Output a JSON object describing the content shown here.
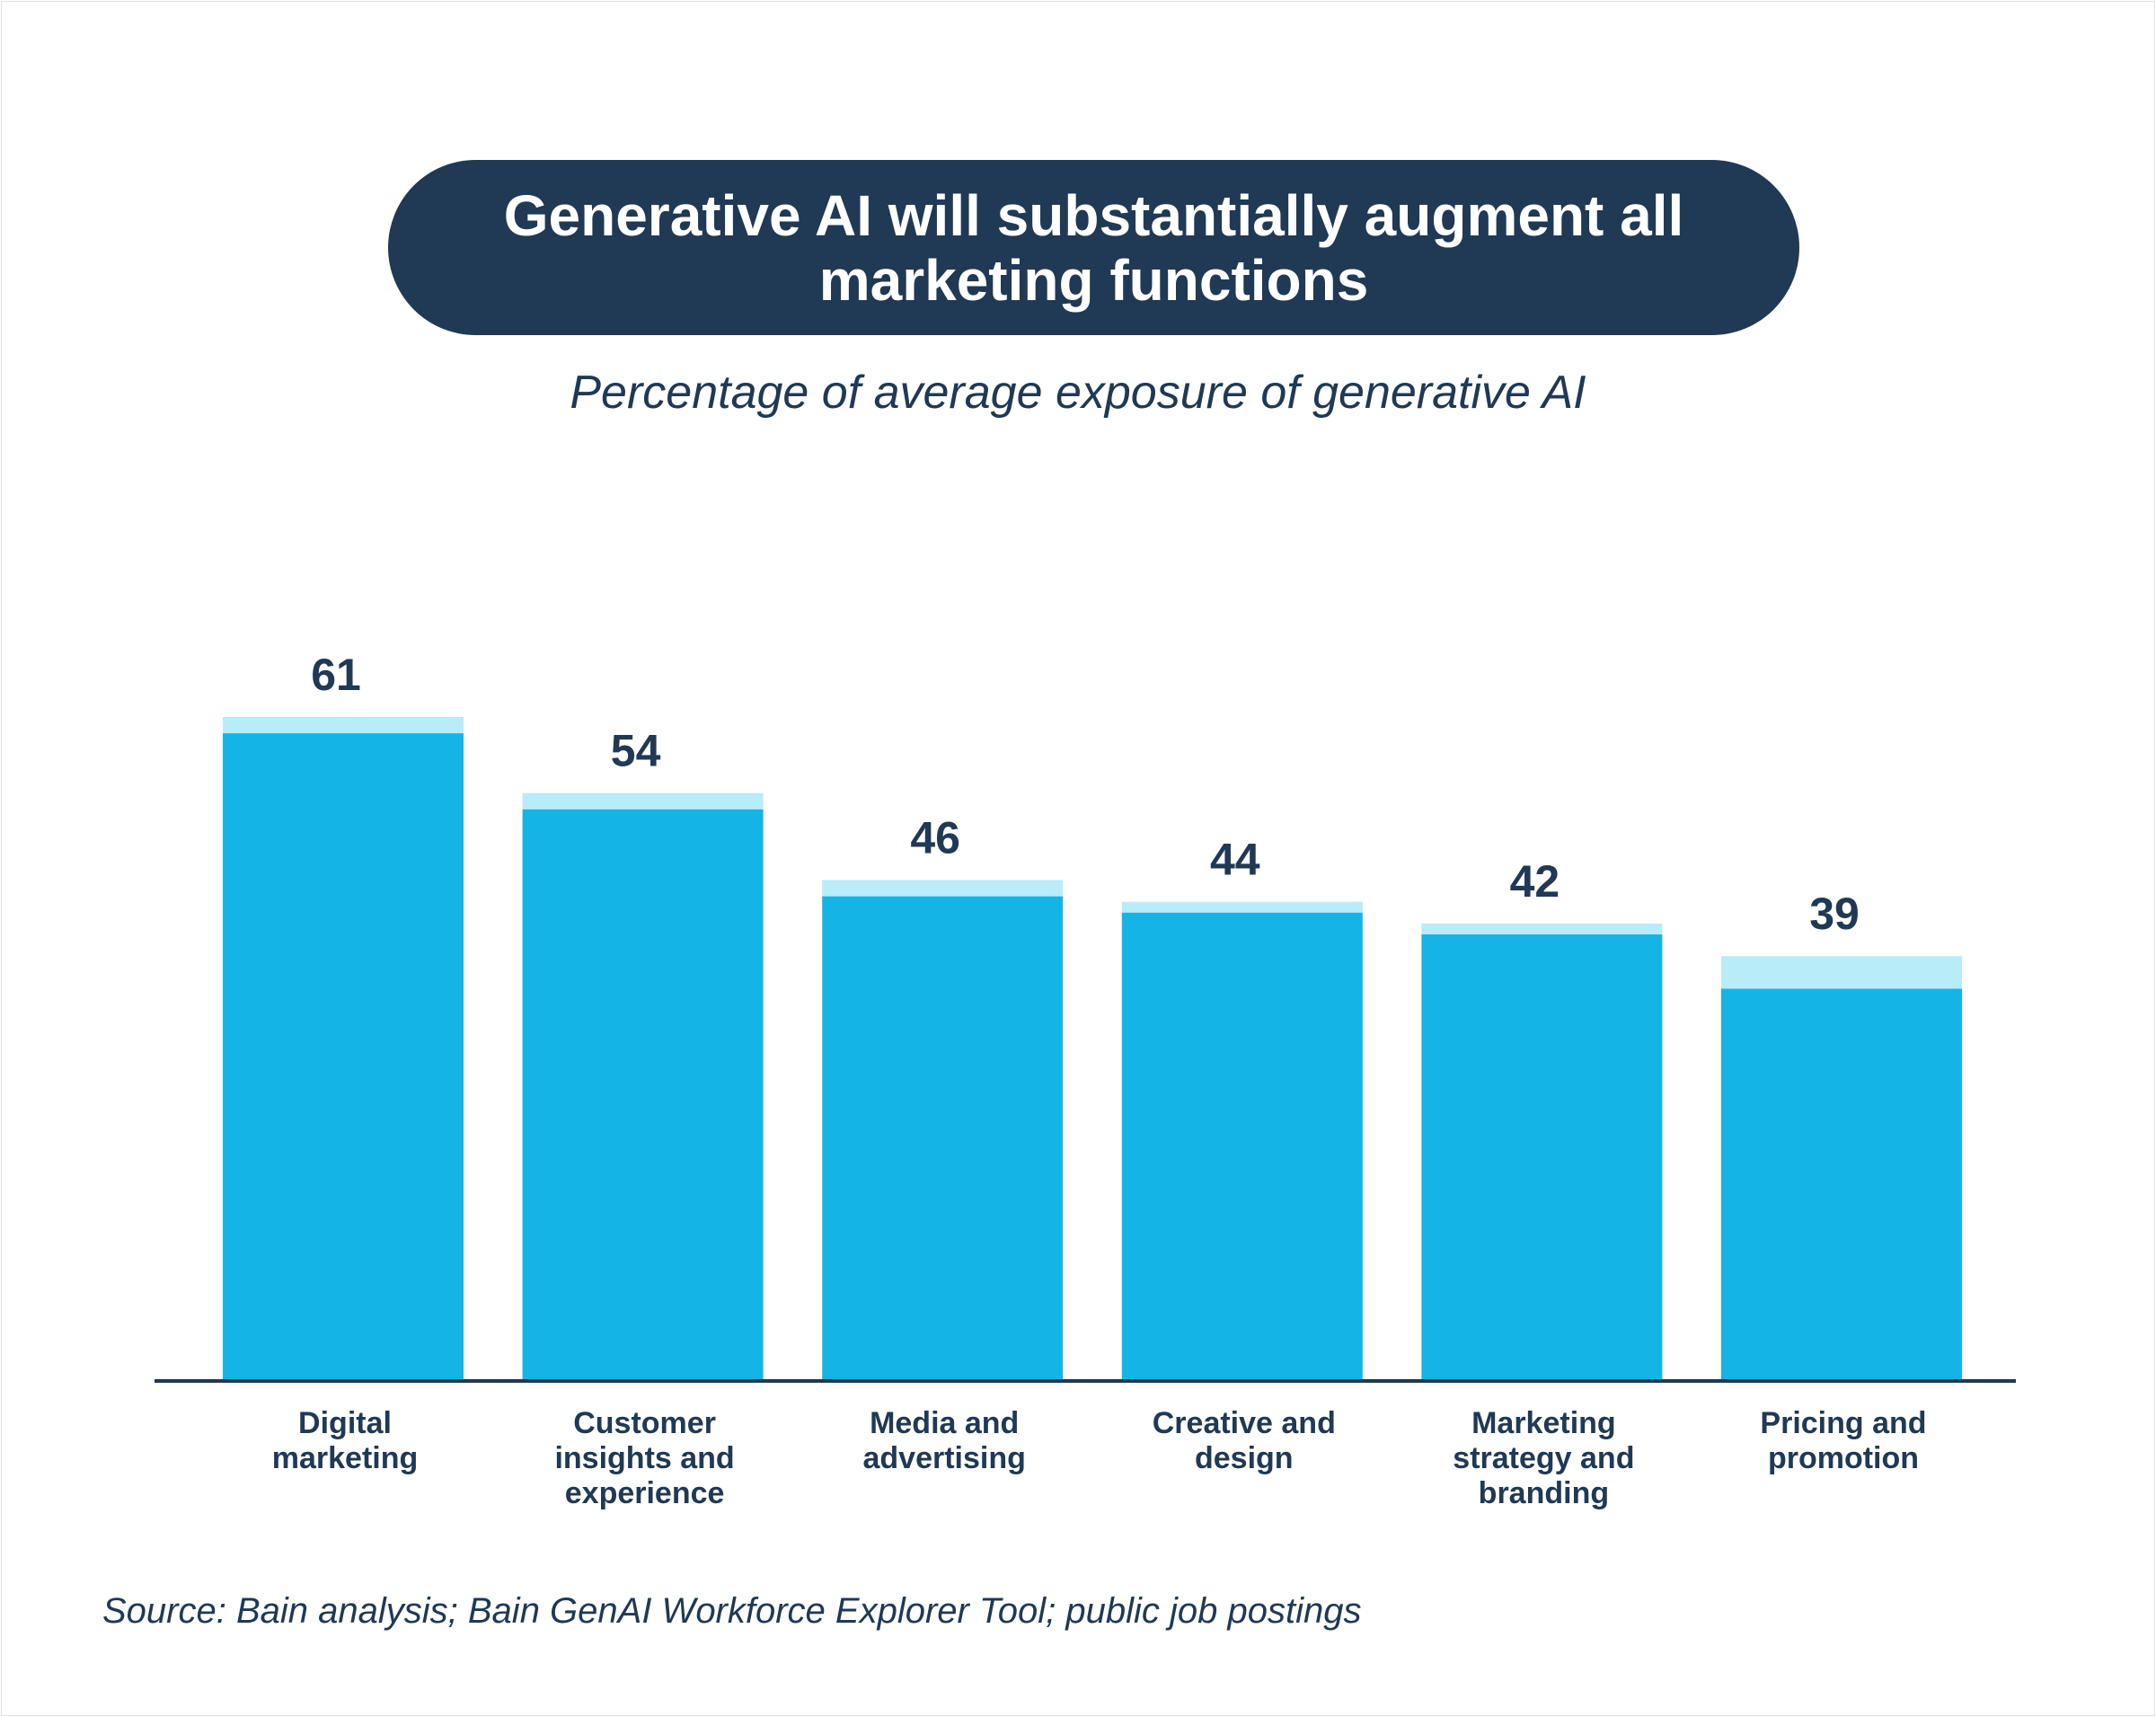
{
  "title": "Generative AI will substantially augment all marketing functions",
  "subtitle": "Percentage of average exposure of generative AI",
  "source": "Source: Bain analysis; Bain GenAI Workforce Explorer Tool; public job postings",
  "colors": {
    "title_background": "#203954",
    "bar_main": "#14b4e6",
    "bar_top": "#b8ecf8",
    "text": "#203954",
    "axis": "#203954"
  },
  "chart_data": {
    "type": "bar",
    "stacked": true,
    "categories": [
      "Digital marketing",
      "Customer insights and experience",
      "Media and advertising",
      "Creative and design",
      "Marketing strategy and branding",
      "Pricing and promotion"
    ],
    "category_lines": [
      [
        "Digital",
        "marketing"
      ],
      [
        "Customer",
        "insights and",
        "experience"
      ],
      [
        "Media and",
        "advertising"
      ],
      [
        "Creative and",
        "design"
      ],
      [
        "Marketing",
        "strategy and",
        "branding"
      ],
      [
        "Pricing and",
        "promotion"
      ]
    ],
    "values": [
      61,
      54,
      46,
      44,
      42,
      39
    ],
    "series": [
      {
        "values": [
          59.5,
          52.5,
          44.5,
          43,
          41,
          36
        ]
      },
      {
        "values": [
          1.5,
          1.5,
          1.5,
          1,
          1,
          3
        ]
      }
    ],
    "title": "Generative AI will substantially augment all marketing functions",
    "subtitle": "Percentage of average exposure of generative AI",
    "xlabel": "",
    "ylabel": "",
    "ylim": [
      0,
      61
    ],
    "grid": false,
    "legend": "none"
  }
}
